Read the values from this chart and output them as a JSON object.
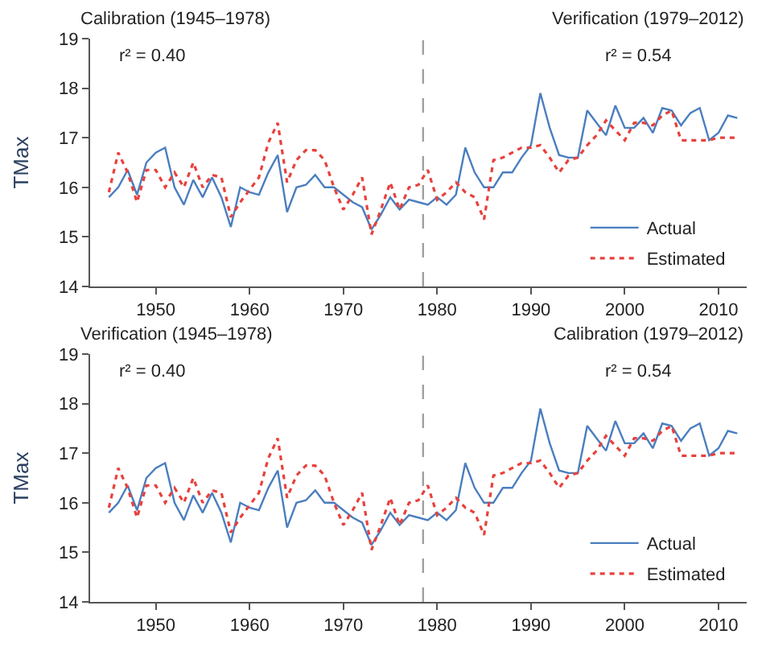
{
  "chart_data": [
    {
      "type": "line",
      "ylabel": "TMax",
      "x": [
        1945,
        1946,
        1947,
        1948,
        1949,
        1950,
        1951,
        1952,
        1953,
        1954,
        1955,
        1956,
        1957,
        1958,
        1959,
        1960,
        1961,
        1962,
        1963,
        1964,
        1965,
        1966,
        1967,
        1968,
        1969,
        1970,
        1971,
        1972,
        1973,
        1974,
        1975,
        1976,
        1977,
        1978,
        1979,
        1980,
        1981,
        1982,
        1983,
        1984,
        1985,
        1986,
        1987,
        1988,
        1989,
        1990,
        1991,
        1992,
        1993,
        1994,
        1995,
        1996,
        1997,
        1998,
        1999,
        2000,
        2001,
        2002,
        2003,
        2004,
        2005,
        2006,
        2007,
        2008,
        2009,
        2010,
        2011,
        2012
      ],
      "series": [
        {
          "name": "Actual",
          "color": "#4a7ebf",
          "line_style": "solid",
          "values": [
            15.8,
            16.0,
            16.35,
            15.85,
            16.5,
            16.7,
            16.8,
            16.0,
            15.65,
            16.15,
            15.8,
            16.2,
            15.8,
            15.2,
            16.0,
            15.9,
            15.85,
            16.3,
            16.65,
            15.5,
            16.0,
            16.05,
            16.25,
            16.0,
            16.0,
            15.85,
            15.7,
            15.6,
            15.15,
            15.45,
            15.8,
            15.55,
            15.75,
            15.7,
            15.65,
            15.8,
            15.65,
            15.85,
            16.8,
            16.3,
            16.0,
            16.0,
            16.3,
            16.3,
            16.6,
            16.85,
            17.9,
            17.2,
            16.65,
            16.6,
            16.6,
            17.55,
            17.3,
            17.05,
            17.65,
            17.2,
            17.2,
            17.4,
            17.1,
            17.6,
            17.55,
            17.25,
            17.5,
            17.6,
            16.95,
            17.1,
            17.45,
            17.4
          ]
        },
        {
          "name": "Estimated",
          "color": "#e8413c",
          "line_style": "dotted",
          "values": [
            15.9,
            16.7,
            16.3,
            15.7,
            16.35,
            16.35,
            16.0,
            16.3,
            16.0,
            16.5,
            16.0,
            16.25,
            16.2,
            15.4,
            15.7,
            15.95,
            16.2,
            16.9,
            17.3,
            16.1,
            16.55,
            16.75,
            16.75,
            16.55,
            16.0,
            15.55,
            15.85,
            16.2,
            15.05,
            15.55,
            16.1,
            15.55,
            16.0,
            16.05,
            16.35,
            15.75,
            15.9,
            16.1,
            15.9,
            15.8,
            15.35,
            16.55,
            16.6,
            16.7,
            16.8,
            16.8,
            16.85,
            16.6,
            16.3,
            16.55,
            16.6,
            16.85,
            17.05,
            17.35,
            17.15,
            16.95,
            17.3,
            17.3,
            17.25,
            17.45,
            17.55,
            16.95,
            16.95,
            16.95,
            16.95,
            17.0,
            17.0,
            17.0
          ]
        }
      ],
      "xlim": [
        1943,
        2013
      ],
      "xticks": [
        1950,
        1960,
        1970,
        1980,
        1990,
        2000,
        2010
      ],
      "ylim": [
        14,
        19
      ],
      "yticks": [
        14,
        15,
        16,
        17,
        18,
        19
      ],
      "ref_lines": [
        {
          "axis": "x",
          "value": 1978.5,
          "color": "#a0a0a0",
          "line_style": "dashed"
        }
      ],
      "annotations": [
        "Calibration (1945–1978)",
        "r² = 0.40",
        "Verification (1979–2012)",
        "r² = 0.54"
      ],
      "legend": "bottom right"
    },
    {
      "type": "line",
      "ylabel": "TMax",
      "x": [
        1945,
        1946,
        1947,
        1948,
        1949,
        1950,
        1951,
        1952,
        1953,
        1954,
        1955,
        1956,
        1957,
        1958,
        1959,
        1960,
        1961,
        1962,
        1963,
        1964,
        1965,
        1966,
        1967,
        1968,
        1969,
        1970,
        1971,
        1972,
        1973,
        1974,
        1975,
        1976,
        1977,
        1978,
        1979,
        1980,
        1981,
        1982,
        1983,
        1984,
        1985,
        1986,
        1987,
        1988,
        1989,
        1990,
        1991,
        1992,
        1993,
        1994,
        1995,
        1996,
        1997,
        1998,
        1999,
        2000,
        2001,
        2002,
        2003,
        2004,
        2005,
        2006,
        2007,
        2008,
        2009,
        2010,
        2011,
        2012
      ],
      "series": [
        {
          "name": "Actual",
          "color": "#4a7ebf",
          "line_style": "solid",
          "values": [
            15.8,
            16.0,
            16.35,
            15.85,
            16.5,
            16.7,
            16.8,
            16.0,
            15.65,
            16.15,
            15.8,
            16.2,
            15.8,
            15.2,
            16.0,
            15.9,
            15.85,
            16.3,
            16.65,
            15.5,
            16.0,
            16.05,
            16.25,
            16.0,
            16.0,
            15.85,
            15.7,
            15.6,
            15.15,
            15.45,
            15.8,
            15.55,
            15.75,
            15.7,
            15.65,
            15.8,
            15.65,
            15.85,
            16.8,
            16.3,
            16.0,
            16.0,
            16.3,
            16.3,
            16.6,
            16.85,
            17.9,
            17.2,
            16.65,
            16.6,
            16.6,
            17.55,
            17.3,
            17.05,
            17.65,
            17.2,
            17.2,
            17.4,
            17.1,
            17.6,
            17.55,
            17.25,
            17.5,
            17.6,
            16.95,
            17.1,
            17.45,
            17.4
          ]
        },
        {
          "name": "Estimated",
          "color": "#e8413c",
          "line_style": "dotted",
          "values": [
            15.9,
            16.7,
            16.3,
            15.7,
            16.35,
            16.35,
            16.0,
            16.3,
            16.0,
            16.5,
            16.0,
            16.25,
            16.2,
            15.4,
            15.7,
            15.95,
            16.2,
            16.9,
            17.3,
            16.1,
            16.55,
            16.75,
            16.75,
            16.55,
            16.0,
            15.55,
            15.85,
            16.2,
            15.05,
            15.55,
            16.1,
            15.55,
            16.0,
            16.05,
            16.35,
            15.75,
            15.9,
            16.1,
            15.9,
            15.8,
            15.35,
            16.55,
            16.6,
            16.7,
            16.8,
            16.8,
            16.85,
            16.6,
            16.3,
            16.55,
            16.6,
            16.85,
            17.05,
            17.35,
            17.15,
            16.95,
            17.3,
            17.3,
            17.25,
            17.45,
            17.55,
            16.95,
            16.95,
            16.95,
            16.95,
            17.0,
            17.0,
            17.0
          ]
        }
      ],
      "xlim": [
        1943,
        2013
      ],
      "xticks": [
        1950,
        1960,
        1970,
        1980,
        1990,
        2000,
        2010
      ],
      "ylim": [
        14,
        19
      ],
      "yticks": [
        14,
        15,
        16,
        17,
        18,
        19
      ],
      "ref_lines": [
        {
          "axis": "x",
          "value": 1978.5,
          "color": "#a0a0a0",
          "line_style": "dashed"
        }
      ],
      "annotations": [
        "Verification (1945–1978)",
        "r² = 0.40",
        "Calibration (1979–2012)",
        "r² = 0.54"
      ],
      "legend": "bottom right"
    }
  ]
}
